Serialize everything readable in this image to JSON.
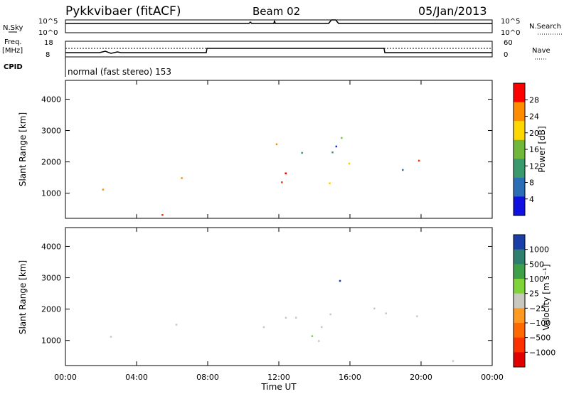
{
  "header": {
    "station": "Pykkvibaer (fitACF)",
    "beam": "Beam 02",
    "date": "05/Jan/2013"
  },
  "strips": {
    "nsky_label": "N.Sky",
    "nsky_ticks": [
      "10^5",
      "10^0"
    ],
    "nsearch_label": "N.Search",
    "nsearch_ticks": [
      "10^5",
      "10^0"
    ],
    "freq_label_1": "Freq.",
    "freq_label_2": "[MHz]",
    "freq_ticks": [
      "18",
      "8"
    ],
    "nave_label": "Nave",
    "nave_ticks": [
      "60",
      "0"
    ],
    "cpid_label": "CPID",
    "cpid_text": "normal (fast stereo) 153"
  },
  "chart_data": [
    {
      "type": "heatmap",
      "name": "power",
      "ylabel": "Slant Range [km]",
      "yticks": [
        1000,
        2000,
        3000,
        4000
      ],
      "ylim": [
        200,
        4600
      ],
      "xlim": [
        0,
        24
      ],
      "colorbar_label": "Power [dB]",
      "colorbar_ticks": [
        "4",
        "8",
        "12",
        "16",
        "20",
        "24",
        "28"
      ],
      "colorbar_colors": [
        "#1010e0",
        "#2a6fb5",
        "#3a9a6e",
        "#6fb83a",
        "#ffd700",
        "#ff8c00",
        "#ff0000"
      ],
      "colorbar_range": [
        0,
        32
      ]
    },
    {
      "type": "heatmap",
      "name": "velocity",
      "ylabel": "Slant Range [km]",
      "yticks": [
        1000,
        2000,
        3000,
        4000
      ],
      "ylim": [
        200,
        4600
      ],
      "xlim": [
        0,
        24
      ],
      "xticks": [
        "00:00",
        "04:00",
        "08:00",
        "12:00",
        "16:00",
        "20:00",
        "00:00"
      ],
      "xlabel": "Time UT",
      "colorbar_label": "Velocity [m s⁻¹]",
      "colorbar_ticks": [
        "1000",
        "500",
        "100",
        "25",
        "−25",
        "−100",
        "−500",
        "−1000"
      ],
      "colorbar_colors": [
        "#1a3ea8",
        "#2f7f6f",
        "#3fa04a",
        "#7fd43a",
        "#c8c8c0",
        "#ff9a20",
        "#ff6a00",
        "#ff3000",
        "#e00000"
      ]
    }
  ],
  "colors": {
    "power_palette": [
      "#1a2fd0",
      "#2a6fb5",
      "#3a9a6e",
      "#7fc040",
      "#ffcc00",
      "#ff8c00",
      "#ff3300",
      "#e00000"
    ],
    "velocity_palette": [
      "#1a3ea8",
      "#2f7f6f",
      "#7fd43a",
      "#c8c8c0",
      "#ff9a20",
      "#ff6a00",
      "#ff3000"
    ]
  }
}
